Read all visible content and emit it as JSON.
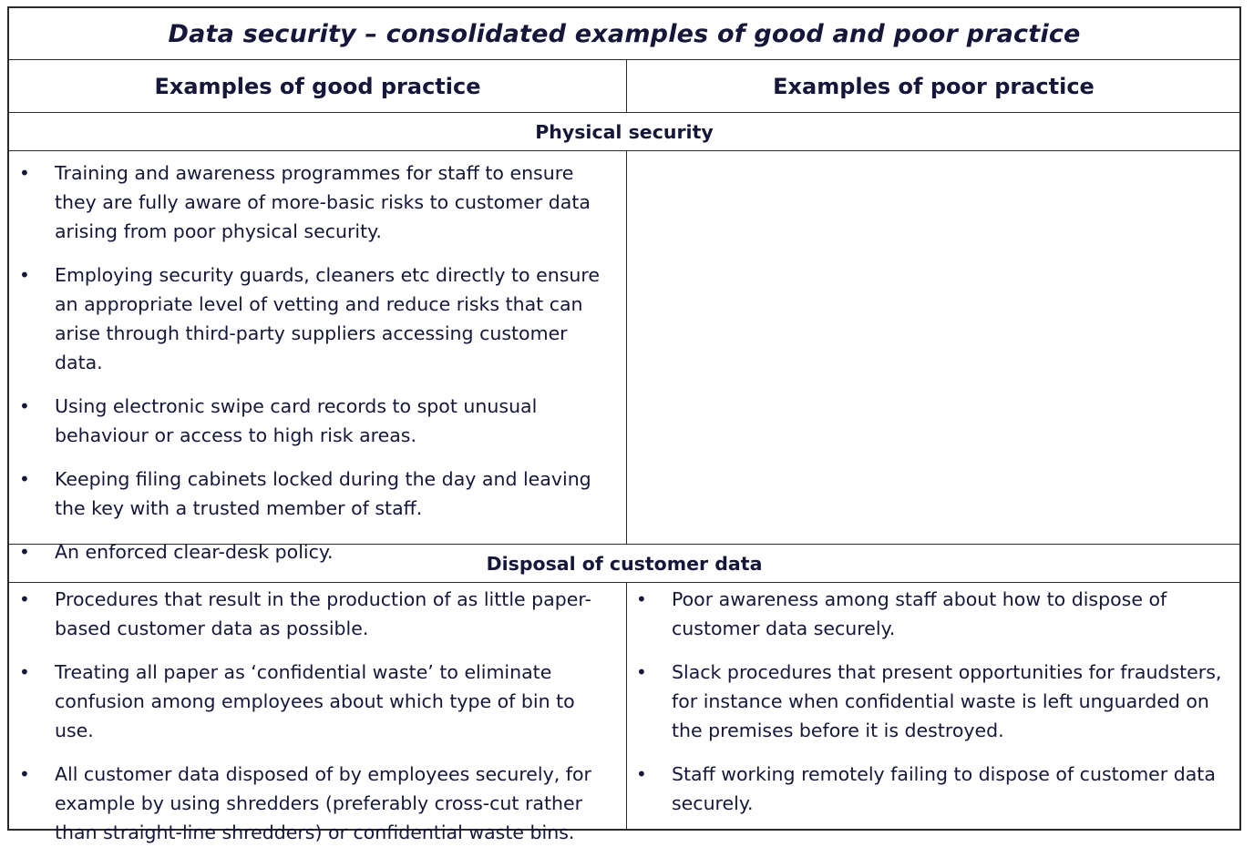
{
  "title": "Data security – consolidated examples of good and poor practice",
  "columns": {
    "good": "Examples of good practice",
    "poor": "Examples of poor practice"
  },
  "sections": [
    {
      "heading": "Physical security",
      "good": [
        "Training and awareness programmes for staff to ensure they are fully aware of more-basic risks to customer data arising from poor physical security.",
        "Employing security guards, cleaners etc directly to ensure an appropriate level of vetting and reduce risks that can arise through third-party suppliers accessing customer data.",
        "Using electronic swipe card records to spot unusual behaviour or access to high risk areas.",
        "Keeping filing cabinets locked during the day and leaving the key with a trusted member of staff.",
        "An enforced clear-desk policy."
      ],
      "poor": []
    },
    {
      "heading": "Disposal of customer data",
      "good": [
        "Procedures that result in the production of as little paper-based customer data as possible.",
        "Treating all paper as ‘confidential waste’ to eliminate confusion among employees about which type of bin to use.",
        "All customer data disposed of by employees securely, for example by using shredders (preferably cross-cut rather than straight-line shredders) or confidential waste bins."
      ],
      "poor": [
        "Poor awareness among staff about how to dispose of customer data securely.",
        "Slack procedures that present opportunities for fraudsters, for instance when confidential waste is left unguarded on the premises before it is destroyed.",
        "Staff working remotely failing to dispose of customer data securely."
      ]
    }
  ],
  "bullet_glyph": "•"
}
